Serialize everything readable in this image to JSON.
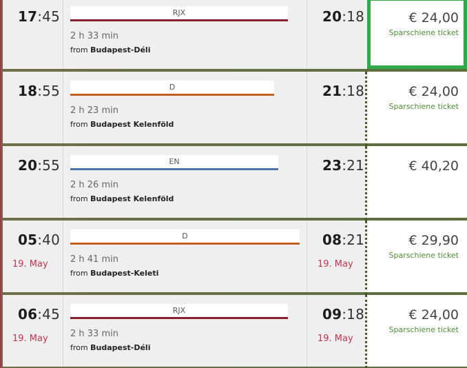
{
  "connections": [
    {
      "dep_h": "17",
      "dep_m": ":45",
      "dep_date": "",
      "train": "RJX",
      "train_color": "#8a1c2b",
      "train_left": 98,
      "train_width": 316,
      "duration": "2 h 33 min",
      "from_prefix": "from ",
      "from_station": "Budapest-Déli",
      "arr_h": "20",
      "arr_m": ":18",
      "arr_date": "",
      "price": "€ 24,00",
      "ticket": "Sparschiene ticket",
      "selected": true
    },
    {
      "dep_h": "18",
      "dep_m": ":55",
      "dep_date": "",
      "train": "D",
      "train_color": "#c35f1d",
      "train_left": 98,
      "train_width": 296,
      "duration": "2 h 23 min",
      "from_prefix": "from ",
      "from_station": "Budapest Kelenföld",
      "arr_h": "21",
      "arr_m": ":18",
      "arr_date": "",
      "price": "€ 24,00",
      "ticket": "Sparschiene ticket",
      "selected": false
    },
    {
      "dep_h": "20",
      "dep_m": ":55",
      "dep_date": "",
      "train": "EN",
      "train_color": "#4a73a8",
      "train_left": 98,
      "train_width": 302,
      "duration": "2 h 26 min",
      "from_prefix": "from ",
      "from_station": "Budapest Kelenföld",
      "arr_h": "23",
      "arr_m": ":21",
      "arr_date": "",
      "price": "€ 40,20",
      "ticket": "",
      "selected": false
    },
    {
      "dep_h": "05",
      "dep_m": ":40",
      "dep_date": "19. May",
      "train": "D",
      "train_color": "#c35f1d",
      "train_left": 98,
      "train_width": 333,
      "duration": "2 h 41 min",
      "from_prefix": "from ",
      "from_station": "Budapest-Keleti",
      "arr_h": "08",
      "arr_m": ":21",
      "arr_date": "19. May",
      "price": "€ 29,90",
      "ticket": "Sparschiene ticket",
      "selected": false
    },
    {
      "dep_h": "06",
      "dep_m": ":45",
      "dep_date": "19. May",
      "train": "RJX",
      "train_color": "#8a1c2b",
      "train_left": 98,
      "train_width": 316,
      "duration": "2 h 33 min",
      "from_prefix": "from ",
      "from_station": "Budapest-Déli",
      "arr_h": "09",
      "arr_m": ":18",
      "arr_date": "19. May",
      "price": "€ 24,00",
      "ticket": "Sparschiene ticket",
      "selected": false
    }
  ]
}
